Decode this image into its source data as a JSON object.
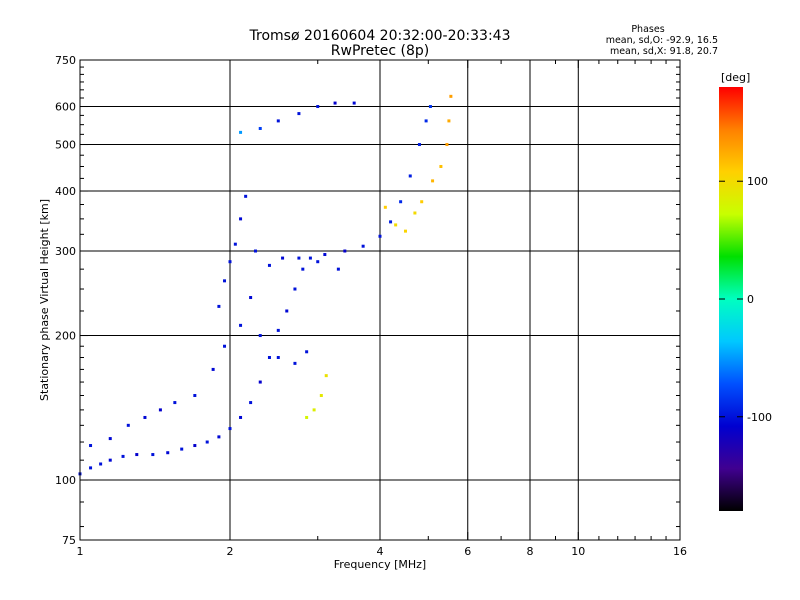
{
  "chart_data": {
    "type": "scatter",
    "title": "Tromsø 20160604 20:32:00-20:33:43",
    "subtitle": "RwPretec (8p)",
    "xlabel": "Frequency [MHz]",
    "ylabel": "Stationary phase Virtual Height [km]",
    "x_scale": "log",
    "y_scale": "log",
    "xlim": [
      1,
      16
    ],
    "ylim": [
      75,
      750
    ],
    "x_ticks": [
      1,
      2,
      4,
      6,
      8,
      10,
      16
    ],
    "x_tick_labels": [
      "1",
      "2",
      "4",
      "6",
      "8",
      "10",
      "16"
    ],
    "x_gridlines": [
      2,
      4,
      6,
      8,
      10
    ],
    "x_minor_ticks": [
      3,
      5,
      7,
      9,
      11,
      12,
      13,
      14,
      15
    ],
    "y_ticks": [
      75,
      100,
      200,
      300,
      400,
      500,
      600,
      750
    ],
    "y_tick_labels": [
      "75",
      "100",
      "200",
      "300",
      "400",
      "500",
      "600",
      "750"
    ],
    "y_gridlines": [
      100,
      200,
      300,
      400,
      500,
      600
    ],
    "y_minor_ticks": [
      80,
      90,
      110,
      120,
      130,
      140,
      150,
      160,
      170,
      180,
      190,
      225,
      250,
      275,
      325,
      350,
      375,
      425,
      450,
      475,
      525,
      550,
      575,
      625,
      650,
      675,
      700,
      725
    ],
    "grid": true,
    "colorbar": {
      "label": "[deg]",
      "range": [
        -180,
        180
      ],
      "ticks": [
        100,
        0,
        -100
      ],
      "tick_labels": [
        "100",
        "0",
        "-100"
      ],
      "colors": [
        "#ff0000",
        "#ff8000",
        "#ffd000",
        "#c8ff00",
        "#00e000",
        "#00ffc0",
        "#00c8ff",
        "#0050ff",
        "#0000d0",
        "#400090",
        "#000000"
      ]
    },
    "phases_box": {
      "title": "Phases",
      "line_o": "mean, sd,O: -92.9, 16.5",
      "line_x": "mean, sd,X:  91.8, 20.7"
    },
    "series": [
      {
        "values": [
          [
            1.0,
            103,
            -100
          ],
          [
            1.05,
            106,
            -100
          ],
          [
            1.1,
            108,
            -100
          ],
          [
            1.15,
            110,
            -105
          ],
          [
            1.22,
            112,
            -100
          ],
          [
            1.3,
            113,
            -110
          ],
          [
            1.4,
            113,
            -100
          ],
          [
            1.5,
            114,
            -105
          ],
          [
            1.6,
            116,
            -100
          ],
          [
            1.7,
            118,
            -110
          ],
          [
            1.8,
            120,
            -100
          ],
          [
            1.9,
            123,
            -105
          ],
          [
            2.0,
            128,
            -100
          ],
          [
            2.1,
            135,
            -105
          ],
          [
            2.2,
            145,
            -100
          ],
          [
            2.3,
            160,
            -110
          ],
          [
            2.4,
            180,
            -100
          ],
          [
            2.5,
            205,
            -100
          ],
          [
            2.6,
            225,
            -105
          ],
          [
            2.7,
            250,
            -100
          ],
          [
            2.8,
            275,
            -100
          ],
          [
            2.9,
            290,
            -100
          ],
          [
            3.1,
            295,
            -105
          ],
          [
            3.4,
            300,
            -110
          ],
          [
            3.7,
            307,
            -100
          ],
          [
            4.0,
            322,
            -100
          ],
          [
            4.2,
            345,
            -95
          ],
          [
            4.4,
            380,
            -90
          ],
          [
            4.6,
            430,
            -95
          ],
          [
            4.8,
            500,
            -95
          ],
          [
            4.95,
            560,
            -90
          ],
          [
            5.05,
            600,
            -85
          ]
        ]
      },
      {
        "values": [
          [
            1.05,
            118,
            -100
          ],
          [
            1.15,
            122,
            -105
          ],
          [
            1.25,
            130,
            -100
          ],
          [
            1.35,
            135,
            -105
          ],
          [
            1.45,
            140,
            -110
          ],
          [
            1.55,
            145,
            -100
          ],
          [
            1.7,
            150,
            -100
          ],
          [
            1.85,
            170,
            -105
          ],
          [
            1.95,
            190,
            -100
          ],
          [
            2.1,
            210,
            -100
          ],
          [
            2.2,
            240,
            -105
          ],
          [
            2.3,
            200,
            -100
          ],
          [
            2.5,
            180,
            -100
          ],
          [
            2.7,
            175,
            -100
          ],
          [
            2.85,
            185,
            -100
          ]
        ]
      },
      {
        "values": [
          [
            1.9,
            230,
            -100
          ],
          [
            1.95,
            260,
            -100
          ],
          [
            2.0,
            285,
            -100
          ],
          [
            2.05,
            310,
            -100
          ],
          [
            2.1,
            350,
            -105
          ],
          [
            2.15,
            390,
            -100
          ],
          [
            2.25,
            300,
            -100
          ],
          [
            2.4,
            280,
            -100
          ],
          [
            2.55,
            290,
            -105
          ],
          [
            2.75,
            290,
            -100
          ],
          [
            3.0,
            285,
            -100
          ],
          [
            3.3,
            275,
            -100
          ]
        ]
      },
      {
        "values": [
          [
            2.1,
            530,
            -50
          ],
          [
            2.3,
            540,
            -80
          ],
          [
            2.5,
            560,
            -100
          ],
          [
            2.75,
            580,
            -100
          ],
          [
            3.0,
            600,
            -100
          ],
          [
            3.25,
            610,
            -110
          ],
          [
            3.55,
            610,
            -105
          ]
        ]
      },
      {
        "values": [
          [
            2.85,
            135,
            80
          ],
          [
            2.95,
            140,
            85
          ],
          [
            3.05,
            150,
            90
          ],
          [
            3.12,
            165,
            95
          ],
          [
            4.1,
            370,
            110
          ],
          [
            4.3,
            340,
            100
          ],
          [
            4.5,
            330,
            105
          ],
          [
            4.7,
            360,
            100
          ],
          [
            4.85,
            380,
            110
          ],
          [
            5.1,
            420,
            120
          ],
          [
            5.3,
            450,
            115
          ],
          [
            5.45,
            500,
            130
          ],
          [
            5.5,
            560,
            125
          ],
          [
            5.55,
            630,
            130
          ]
        ]
      }
    ]
  }
}
